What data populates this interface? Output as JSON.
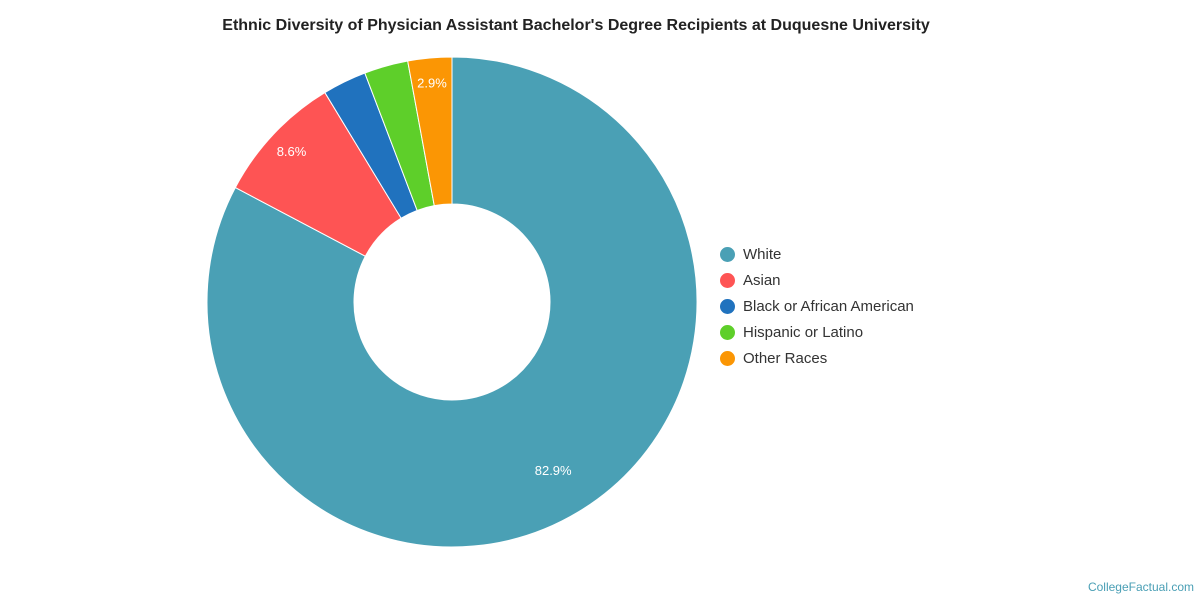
{
  "chart_data": {
    "type": "pie",
    "title": "Ethnic Diversity of Physician Assistant Bachelor's Degree Recipients at Duquesne University",
    "donut": true,
    "legend_position": "right",
    "series": [
      {
        "name": "White",
        "value": 82.9,
        "label": "82.9%",
        "color": "#4aa0b5"
      },
      {
        "name": "Asian",
        "value": 8.6,
        "label": "8.6%",
        "color": "#fe5454"
      },
      {
        "name": "Black or African American",
        "value": 2.9,
        "label": "",
        "color": "#2072be"
      },
      {
        "name": "Hispanic or Latino",
        "value": 2.9,
        "label": "",
        "color": "#5ecf2a"
      },
      {
        "name": "Other Races",
        "value": 2.9,
        "label": "2.9%",
        "color": "#fb9604"
      }
    ]
  },
  "footer": {
    "credit": "CollegeFactual.com"
  }
}
